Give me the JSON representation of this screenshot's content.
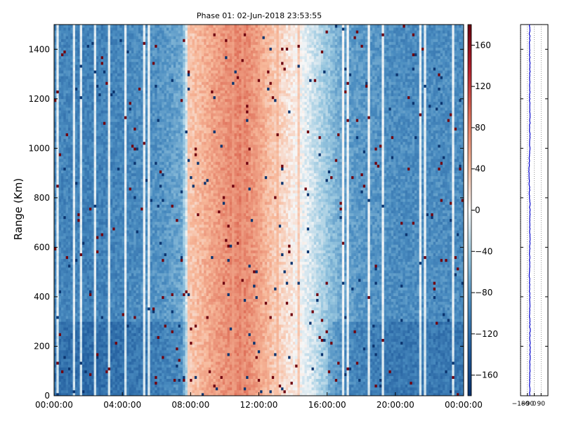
{
  "chart_data": [
    {
      "type": "heatmap",
      "title": "Phase 01: 02-Jun-2018 23:53:55",
      "xlabel": "",
      "ylabel": "Range (Km)",
      "x_ticks": [
        "00:00:00",
        "04:00:00",
        "08:00:00",
        "12:00:00",
        "16:00:00",
        "20:00:00",
        "00:00:00"
      ],
      "x_tick_hours": [
        0,
        4,
        8,
        12,
        16,
        20,
        24
      ],
      "xlim_hours": [
        0,
        24
      ],
      "y_ticks": [
        0,
        200,
        400,
        600,
        800,
        1000,
        1200,
        1400
      ],
      "ylim": [
        0,
        1500
      ],
      "colorbar": {
        "ticks": [
          160,
          120,
          80,
          40,
          0,
          -40,
          -80,
          -120,
          -160
        ],
        "range": [
          -180,
          180
        ],
        "colormap": "RdBu_r",
        "color_low": "#08306b",
        "color_mid": "#f7f7f7",
        "color_high": "#67000d"
      },
      "phase_profile_by_hour": [
        {
          "hour": 0,
          "phase": -95
        },
        {
          "hour": 2,
          "phase": -100
        },
        {
          "hour": 4,
          "phase": -95
        },
        {
          "hour": 6,
          "phase": -85
        },
        {
          "hour": 7.5,
          "phase": -70
        },
        {
          "hour": 8,
          "phase": 35
        },
        {
          "hour": 10,
          "phase": 70
        },
        {
          "hour": 11,
          "phase": 80
        },
        {
          "hour": 12,
          "phase": 60
        },
        {
          "hour": 13,
          "phase": 30
        },
        {
          "hour": 14,
          "phase": 10
        },
        {
          "hour": 15,
          "phase": -15
        },
        {
          "hour": 16,
          "phase": -45
        },
        {
          "hour": 17,
          "phase": -75
        },
        {
          "hour": 20,
          "phase": -90
        },
        {
          "hour": 24,
          "phase": -90
        }
      ],
      "grid": false
    },
    {
      "type": "line",
      "title": "",
      "x_ticks": [
        "-180",
        "-90",
        "0",
        "90"
      ],
      "x_tick_values": [
        -180,
        -90,
        0,
        90
      ],
      "xlim": [
        -180,
        180
      ],
      "ylim": [
        0,
        1500
      ],
      "y_ticks": [
        0,
        200,
        400,
        600,
        800,
        1000,
        1200,
        1400
      ],
      "grid": true,
      "line_color": "#0000cc",
      "profile_points": [
        {
          "range": 0,
          "phase": -60
        },
        {
          "range": 200,
          "phase": -55
        },
        {
          "range": 300,
          "phase": -58
        },
        {
          "range": 400,
          "phase": -60
        },
        {
          "range": 500,
          "phase": -62
        },
        {
          "range": 600,
          "phase": -60
        },
        {
          "range": 700,
          "phase": -58
        },
        {
          "range": 800,
          "phase": -60
        },
        {
          "range": 920,
          "phase": -70
        },
        {
          "range": 1000,
          "phase": -60
        },
        {
          "range": 1100,
          "phase": -58
        },
        {
          "range": 1200,
          "phase": -60
        },
        {
          "range": 1300,
          "phase": -58
        },
        {
          "range": 1400,
          "phase": -60
        },
        {
          "range": 1500,
          "phase": -60
        }
      ]
    }
  ]
}
